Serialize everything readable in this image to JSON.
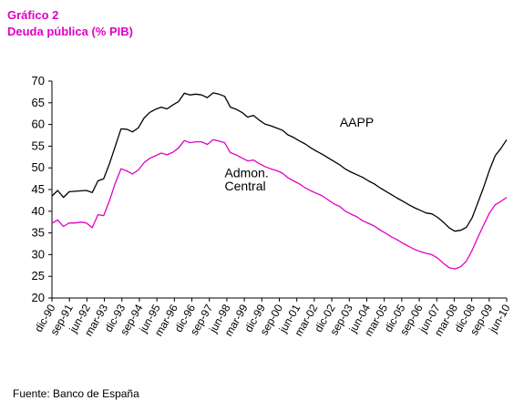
{
  "header": {
    "label": "Gráfico 2",
    "title": "Deuda pública (% PIB)",
    "color": "#e000c8"
  },
  "source": "Fuente: Banco de España",
  "chart_data": {
    "type": "line",
    "ylim": [
      20,
      70
    ],
    "yticks": [
      20,
      25,
      30,
      35,
      40,
      45,
      50,
      55,
      60,
      65,
      70
    ],
    "xticks": [
      "dic-90",
      "sep-91",
      "jun-92",
      "mar-93",
      "dic-93",
      "sep-94",
      "jun-95",
      "mar-96",
      "dic-96",
      "sep-97",
      "jun-98",
      "mar-99",
      "dic-99",
      "sep-00",
      "jun-01",
      "mar-02",
      "dic-02",
      "sep-03",
      "jun-04",
      "mar-05",
      "dic-05",
      "sep-06",
      "jun-07",
      "mar-08",
      "dic-08",
      "sep-09",
      "jun-10"
    ],
    "grid": false,
    "series": [
      {
        "name": "AAPP",
        "color": "#000000",
        "values": [
          43.5,
          44.8,
          43.2,
          44.5,
          44.6,
          44.7,
          44.8,
          44.3,
          47.0,
          47.5,
          51.0,
          55.0,
          59.0,
          58.9,
          58.3,
          59.2,
          61.5,
          62.8,
          63.5,
          64.0,
          63.6,
          64.5,
          65.3,
          67.2,
          66.8,
          67.0,
          66.8,
          66.2,
          67.3,
          67.0,
          66.5,
          64.0,
          63.5,
          62.8,
          61.7,
          62.1,
          61.0,
          60.1,
          59.7,
          59.2,
          58.7,
          57.6,
          57.0,
          56.2,
          55.5,
          54.6,
          53.8,
          53.1,
          52.3,
          51.5,
          50.7,
          49.7,
          49.0,
          48.4,
          47.8,
          47.0,
          46.3,
          45.4,
          44.6,
          43.8,
          43.0,
          42.3,
          41.5,
          40.8,
          40.2,
          39.6,
          39.4,
          38.6,
          37.5,
          36.2,
          35.4,
          35.6,
          36.3,
          38.5,
          42.0,
          45.5,
          49.5,
          52.8,
          54.5,
          56.5
        ]
      },
      {
        "name": "Admon. Central",
        "color": "#e000c8",
        "values": [
          37.2,
          38.0,
          36.5,
          37.3,
          37.3,
          37.5,
          37.3,
          36.2,
          39.2,
          39.0,
          42.5,
          46.5,
          49.8,
          49.3,
          48.6,
          49.5,
          51.2,
          52.2,
          52.8,
          53.4,
          53.0,
          53.6,
          54.6,
          56.3,
          55.8,
          56.0,
          56.0,
          55.4,
          56.5,
          56.2,
          55.8,
          53.5,
          53.0,
          52.3,
          51.6,
          51.8,
          51.0,
          50.3,
          49.8,
          49.4,
          48.8,
          47.7,
          47.0,
          46.3,
          45.4,
          44.7,
          44.1,
          43.5,
          42.6,
          41.7,
          41.1,
          40.0,
          39.3,
          38.7,
          37.8,
          37.2,
          36.6,
          35.7,
          34.9,
          34.1,
          33.4,
          32.6,
          31.9,
          31.2,
          30.7,
          30.3,
          30.0,
          29.2,
          28.0,
          27.0,
          26.7,
          27.2,
          28.5,
          31.0,
          34.0,
          36.8,
          39.6,
          41.5,
          42.3,
          43.2
        ]
      }
    ],
    "annotations": [
      {
        "text": "AAPP",
        "x_index": 50,
        "y": 59.5
      },
      {
        "text": "Admon.",
        "x_index": 30,
        "y": 47.8
      },
      {
        "text": "Central",
        "x_index": 30,
        "y": 44.8
      }
    ]
  }
}
